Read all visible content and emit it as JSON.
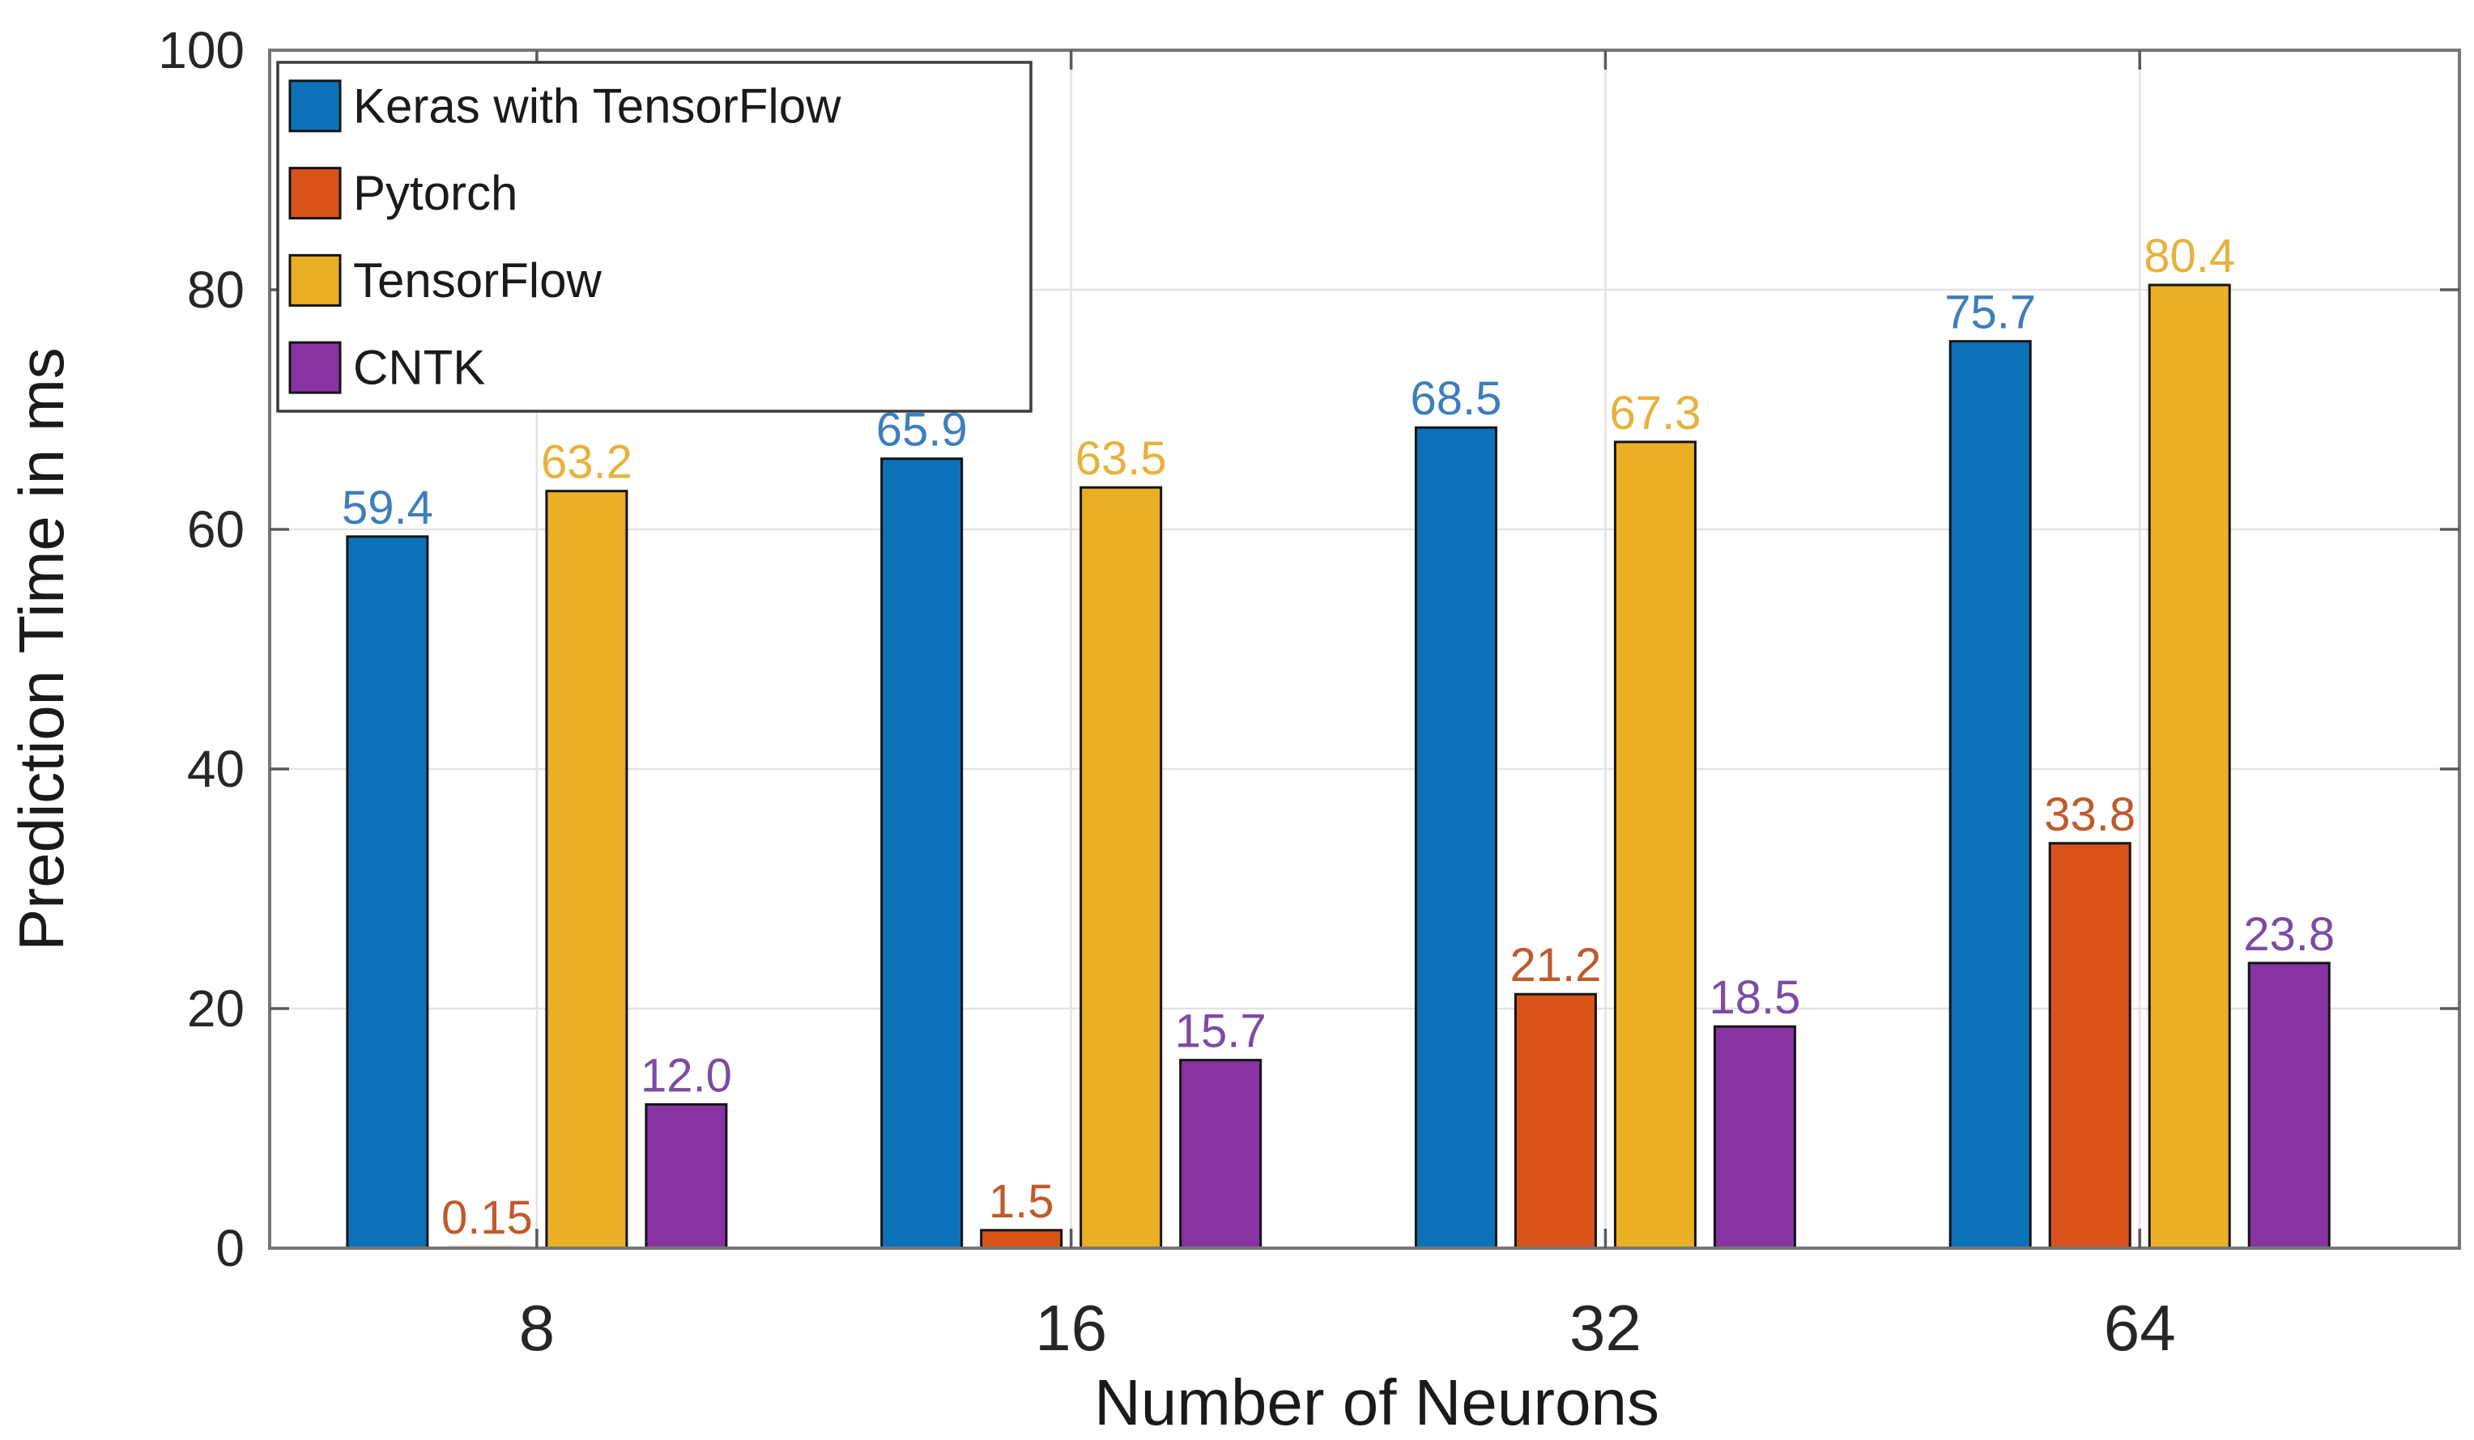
{
  "figure": {
    "background": "#FFFFFF",
    "axes_box_color": "#767676",
    "grid_color": "#E3E3E3",
    "tick_color": "#5A5A5A",
    "tick_label_color": "#262626",
    "axis_label_color": "#1A1A1A",
    "bar_edge_color": "#141414",
    "legend_border_color": "#3C3C3C",
    "legend_background": "#FFFFFF"
  },
  "chart_data": {
    "type": "bar",
    "title": "",
    "xlabel": "Number of Neurons",
    "ylabel": "Prediction Time in  ms",
    "categories": [
      "8",
      "16",
      "32",
      "64"
    ],
    "series": [
      {
        "name": "Keras with TensorFlow",
        "color": "#0B72B9",
        "label_color": "#3D7EBB",
        "values": [
          59.4,
          65.9,
          68.5,
          75.7
        ],
        "labels": [
          "59.4",
          "65.9",
          "68.5",
          "75.7"
        ]
      },
      {
        "name": "Pytorch",
        "color": "#D8531A",
        "label_color": "#C05A2B",
        "values": [
          0.15,
          1.5,
          21.2,
          33.8
        ],
        "labels": [
          "0.15",
          "1.5",
          "21.2",
          "33.8"
        ]
      },
      {
        "name": "TensorFlow",
        "color": "#EBAF25",
        "label_color": "#E7B13B",
        "values": [
          63.2,
          63.5,
          67.3,
          80.4
        ],
        "labels": [
          "63.2",
          "63.5",
          "67.3",
          "80.4"
        ]
      },
      {
        "name": "CNTK",
        "color": "#8733A1",
        "label_color": "#7C4BA4",
        "values": [
          12.0,
          15.7,
          18.5,
          23.8
        ],
        "labels": [
          "12.0",
          "15.7",
          "18.5",
          "23.8"
        ]
      }
    ],
    "ylim": [
      0,
      100
    ],
    "yticks": [
      0,
      20,
      40,
      60,
      80,
      100
    ],
    "ytick_labels": [
      "0",
      "20",
      "40",
      "60",
      "80",
      "100"
    ],
    "grid": true,
    "legend_position": "top-left"
  }
}
